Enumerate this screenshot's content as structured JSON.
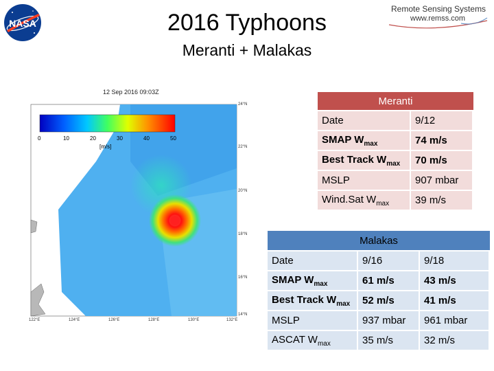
{
  "header": {
    "title": "2016 Typhoons",
    "subtitle": "Meranti + Malakas",
    "nasa_logo_text": "NASA",
    "rss_logo_name": "Remote Sensing Systems",
    "rss_logo_url": "www.remss.com"
  },
  "map": {
    "timestamp": "12 Sep 2016 09:03Z",
    "colorbar_ticks": [
      "0",
      "10",
      "20",
      "30",
      "40",
      "50"
    ],
    "colorbar_unit": "[m/s]",
    "lat_labels": [
      "24°N",
      "22°N",
      "20°N",
      "18°N",
      "16°N",
      "14°N"
    ],
    "lon_labels": [
      "122°E",
      "124°E",
      "126°E",
      "128°E",
      "130°E",
      "132°E"
    ],
    "colors": {
      "ocean_base": "#4fb0f0",
      "land": "#b8b8b8",
      "no_data": "#ffffff",
      "eye_core": "#ff2020"
    }
  },
  "meranti": {
    "header": "Meranti",
    "rows": [
      {
        "label": "Date",
        "sub": "",
        "value": "9/12",
        "bold": false
      },
      {
        "label": "SMAP W",
        "sub": "max",
        "value": "74 m/s",
        "bold": true
      },
      {
        "label": "Best Track W",
        "sub": "max",
        "value": "70 m/s",
        "bold": true
      },
      {
        "label": "MSLP",
        "sub": "",
        "value": "907 mbar",
        "bold": false
      },
      {
        "label": "Wind.Sat W",
        "sub": "max",
        "value": "39 m/s",
        "bold": false
      }
    ],
    "header_color": "#c0504d",
    "row_color": "#f2dcdb"
  },
  "malakas": {
    "header": "Malakas",
    "rows": [
      {
        "label": "Date",
        "sub": "",
        "v1": "9/16",
        "v2": "9/18",
        "bold": false
      },
      {
        "label": "SMAP W",
        "sub": "max",
        "v1": "61 m/s",
        "v2": "43 m/s",
        "bold": true
      },
      {
        "label": "Best Track W",
        "sub": "max",
        "v1": "52 m/s",
        "v2": "41 m/s",
        "bold": true
      },
      {
        "label": "MSLP",
        "sub": "",
        "v1": "937 mbar",
        "v2": "961 mbar",
        "bold": false
      },
      {
        "label": "ASCAT W",
        "sub": "max",
        "v1": "35 m/s",
        "v2": "32 m/s",
        "bold": false
      }
    ],
    "header_color": "#4f81bd",
    "row_color": "#dbe5f1"
  }
}
